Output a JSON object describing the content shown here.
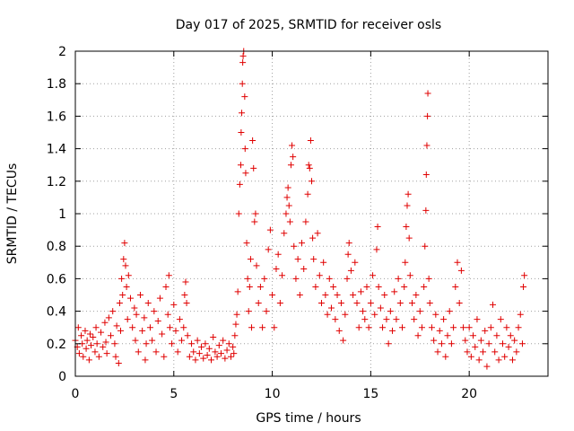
{
  "chart_data": {
    "type": "scatter",
    "title": "Day 017 of 2025, SRMTID for receiver osls",
    "xlabel": "GPS time / hours",
    "ylabel": "SRMTID / TECUs",
    "xlim": [
      0,
      24
    ],
    "ylim": [
      0,
      2
    ],
    "x_ticks": [
      0,
      5,
      10,
      15,
      20
    ],
    "x_tick_labels": [
      "0",
      "5",
      "10",
      "15",
      "20"
    ],
    "y_ticks": [
      0,
      0.2,
      0.4,
      0.6,
      0.8,
      1,
      1.2,
      1.4,
      1.6,
      1.8,
      2
    ],
    "y_tick_labels": [
      "0",
      "0.2",
      "0.4",
      "0.6",
      "0.8",
      "1",
      "1.2",
      "1.4",
      "1.6",
      "1.8",
      "2"
    ],
    "grid": true,
    "marker": "+",
    "color": "#e00000",
    "series": [
      {
        "name": "SRMTID",
        "points": [
          [
            0.0,
            0.22
          ],
          [
            0.1,
            0.18
          ],
          [
            0.15,
            0.3
          ],
          [
            0.2,
            0.14
          ],
          [
            0.3,
            0.25
          ],
          [
            0.35,
            0.2
          ],
          [
            0.4,
            0.12
          ],
          [
            0.5,
            0.28
          ],
          [
            0.55,
            0.17
          ],
          [
            0.6,
            0.22
          ],
          [
            0.7,
            0.1
          ],
          [
            0.75,
            0.26
          ],
          [
            0.8,
            0.19
          ],
          [
            0.9,
            0.24
          ],
          [
            1.0,
            0.15
          ],
          [
            1.05,
            0.3
          ],
          [
            1.1,
            0.2
          ],
          [
            1.2,
            0.12
          ],
          [
            1.3,
            0.27
          ],
          [
            1.4,
            0.18
          ],
          [
            1.5,
            0.33
          ],
          [
            1.55,
            0.21
          ],
          [
            1.6,
            0.14
          ],
          [
            1.7,
            0.36
          ],
          [
            1.8,
            0.25
          ],
          [
            1.9,
            0.4
          ],
          [
            2.0,
            0.2
          ],
          [
            2.05,
            0.12
          ],
          [
            2.1,
            0.31
          ],
          [
            2.2,
            0.08
          ],
          [
            2.25,
            0.45
          ],
          [
            2.3,
            0.28
          ],
          [
            2.35,
            0.6
          ],
          [
            2.4,
            0.5
          ],
          [
            2.45,
            0.72
          ],
          [
            2.5,
            0.82
          ],
          [
            2.55,
            0.68
          ],
          [
            2.6,
            0.55
          ],
          [
            2.65,
            0.35
          ],
          [
            2.7,
            0.62
          ],
          [
            2.8,
            0.48
          ],
          [
            2.9,
            0.3
          ],
          [
            3.0,
            0.42
          ],
          [
            3.05,
            0.22
          ],
          [
            3.1,
            0.38
          ],
          [
            3.2,
            0.15
          ],
          [
            3.3,
            0.5
          ],
          [
            3.4,
            0.28
          ],
          [
            3.5,
            0.36
          ],
          [
            3.55,
            0.1
          ],
          [
            3.6,
            0.2
          ],
          [
            3.7,
            0.45
          ],
          [
            3.8,
            0.3
          ],
          [
            3.9,
            0.22
          ],
          [
            4.0,
            0.4
          ],
          [
            4.1,
            0.15
          ],
          [
            4.2,
            0.34
          ],
          [
            4.3,
            0.48
          ],
          [
            4.4,
            0.26
          ],
          [
            4.5,
            0.12
          ],
          [
            4.6,
            0.55
          ],
          [
            4.7,
            0.38
          ],
          [
            4.75,
            0.62
          ],
          [
            4.8,
            0.3
          ],
          [
            4.9,
            0.2
          ],
          [
            5.0,
            0.44
          ],
          [
            5.1,
            0.28
          ],
          [
            5.2,
            0.15
          ],
          [
            5.3,
            0.35
          ],
          [
            5.4,
            0.22
          ],
          [
            5.5,
            0.3
          ],
          [
            5.55,
            0.5
          ],
          [
            5.6,
            0.58
          ],
          [
            5.65,
            0.45
          ],
          [
            5.7,
            0.25
          ],
          [
            5.8,
            0.12
          ],
          [
            5.9,
            0.2
          ],
          [
            6.0,
            0.15
          ],
          [
            6.1,
            0.1
          ],
          [
            6.2,
            0.22
          ],
          [
            6.3,
            0.14
          ],
          [
            6.4,
            0.18
          ],
          [
            6.5,
            0.11
          ],
          [
            6.6,
            0.2
          ],
          [
            6.7,
            0.13
          ],
          [
            6.8,
            0.17
          ],
          [
            6.9,
            0.1
          ],
          [
            7.0,
            0.24
          ],
          [
            7.1,
            0.15
          ],
          [
            7.2,
            0.12
          ],
          [
            7.3,
            0.19
          ],
          [
            7.4,
            0.14
          ],
          [
            7.5,
            0.22
          ],
          [
            7.6,
            0.11
          ],
          [
            7.7,
            0.16
          ],
          [
            7.8,
            0.2
          ],
          [
            7.9,
            0.12
          ],
          [
            8.0,
            0.18
          ],
          [
            8.05,
            0.14
          ],
          [
            8.1,
            0.25
          ],
          [
            8.15,
            0.32
          ],
          [
            8.2,
            0.38
          ],
          [
            8.25,
            0.52
          ],
          [
            8.3,
            1.0
          ],
          [
            8.35,
            1.18
          ],
          [
            8.4,
            1.3
          ],
          [
            8.42,
            1.5
          ],
          [
            8.45,
            1.62
          ],
          [
            8.48,
            1.8
          ],
          [
            8.5,
            1.93
          ],
          [
            8.52,
            1.97
          ],
          [
            8.55,
            2.0
          ],
          [
            8.6,
            1.72
          ],
          [
            8.62,
            1.4
          ],
          [
            8.65,
            1.25
          ],
          [
            8.7,
            0.82
          ],
          [
            8.75,
            0.6
          ],
          [
            8.8,
            0.4
          ],
          [
            8.85,
            0.55
          ],
          [
            8.9,
            0.72
          ],
          [
            8.95,
            0.3
          ],
          [
            9.0,
            1.45
          ],
          [
            9.05,
            1.28
          ],
          [
            9.1,
            0.95
          ],
          [
            9.15,
            1.0
          ],
          [
            9.2,
            0.68
          ],
          [
            9.3,
            0.45
          ],
          [
            9.4,
            0.55
          ],
          [
            9.5,
            0.3
          ],
          [
            9.6,
            0.6
          ],
          [
            9.7,
            0.4
          ],
          [
            9.8,
            0.78
          ],
          [
            9.9,
            0.9
          ],
          [
            10.0,
            0.5
          ],
          [
            10.1,
            0.3
          ],
          [
            10.2,
            0.66
          ],
          [
            10.3,
            0.75
          ],
          [
            10.4,
            0.45
          ],
          [
            10.5,
            0.62
          ],
          [
            10.6,
            0.88
          ],
          [
            10.7,
            1.0
          ],
          [
            10.75,
            1.1
          ],
          [
            10.8,
            1.16
          ],
          [
            10.85,
            1.05
          ],
          [
            10.9,
            0.95
          ],
          [
            10.95,
            1.3
          ],
          [
            11.0,
            1.42
          ],
          [
            11.05,
            1.35
          ],
          [
            11.1,
            0.8
          ],
          [
            11.2,
            0.6
          ],
          [
            11.3,
            0.72
          ],
          [
            11.4,
            0.5
          ],
          [
            11.5,
            0.82
          ],
          [
            11.6,
            0.66
          ],
          [
            11.7,
            0.95
          ],
          [
            11.8,
            1.12
          ],
          [
            11.85,
            1.3
          ],
          [
            11.9,
            1.28
          ],
          [
            11.95,
            1.45
          ],
          [
            12.0,
            1.2
          ],
          [
            12.05,
            0.85
          ],
          [
            12.1,
            0.72
          ],
          [
            12.2,
            0.55
          ],
          [
            12.3,
            0.88
          ],
          [
            12.4,
            0.62
          ],
          [
            12.5,
            0.45
          ],
          [
            12.6,
            0.7
          ],
          [
            12.7,
            0.5
          ],
          [
            12.8,
            0.38
          ],
          [
            12.9,
            0.6
          ],
          [
            13.0,
            0.42
          ],
          [
            13.1,
            0.55
          ],
          [
            13.2,
            0.35
          ],
          [
            13.3,
            0.5
          ],
          [
            13.4,
            0.28
          ],
          [
            13.5,
            0.45
          ],
          [
            13.6,
            0.22
          ],
          [
            13.7,
            0.38
          ],
          [
            13.8,
            0.6
          ],
          [
            13.85,
            0.75
          ],
          [
            13.9,
            0.82
          ],
          [
            14.0,
            0.65
          ],
          [
            14.1,
            0.5
          ],
          [
            14.2,
            0.7
          ],
          [
            14.3,
            0.45
          ],
          [
            14.4,
            0.3
          ],
          [
            14.5,
            0.52
          ],
          [
            14.6,
            0.4
          ],
          [
            14.7,
            0.35
          ],
          [
            14.8,
            0.55
          ],
          [
            14.9,
            0.3
          ],
          [
            15.0,
            0.45
          ],
          [
            15.1,
            0.62
          ],
          [
            15.2,
            0.38
          ],
          [
            15.3,
            0.78
          ],
          [
            15.35,
            0.92
          ],
          [
            15.4,
            0.55
          ],
          [
            15.5,
            0.42
          ],
          [
            15.6,
            0.3
          ],
          [
            15.7,
            0.5
          ],
          [
            15.8,
            0.35
          ],
          [
            15.9,
            0.2
          ],
          [
            16.0,
            0.4
          ],
          [
            16.1,
            0.28
          ],
          [
            16.2,
            0.52
          ],
          [
            16.3,
            0.35
          ],
          [
            16.4,
            0.6
          ],
          [
            16.5,
            0.45
          ],
          [
            16.6,
            0.3
          ],
          [
            16.7,
            0.55
          ],
          [
            16.75,
            0.7
          ],
          [
            16.8,
            0.92
          ],
          [
            16.85,
            1.05
          ],
          [
            16.9,
            1.12
          ],
          [
            16.95,
            0.85
          ],
          [
            17.0,
            0.62
          ],
          [
            17.1,
            0.45
          ],
          [
            17.2,
            0.35
          ],
          [
            17.3,
            0.5
          ],
          [
            17.4,
            0.25
          ],
          [
            17.5,
            0.4
          ],
          [
            17.6,
            0.3
          ],
          [
            17.7,
            0.55
          ],
          [
            17.75,
            0.8
          ],
          [
            17.8,
            1.02
          ],
          [
            17.82,
            1.24
          ],
          [
            17.85,
            1.42
          ],
          [
            17.88,
            1.6
          ],
          [
            17.9,
            1.74
          ],
          [
            17.95,
            0.6
          ],
          [
            18.0,
            0.45
          ],
          [
            18.1,
            0.3
          ],
          [
            18.2,
            0.22
          ],
          [
            18.3,
            0.38
          ],
          [
            18.4,
            0.15
          ],
          [
            18.5,
            0.28
          ],
          [
            18.6,
            0.2
          ],
          [
            18.7,
            0.35
          ],
          [
            18.8,
            0.12
          ],
          [
            18.9,
            0.25
          ],
          [
            19.0,
            0.4
          ],
          [
            19.1,
            0.2
          ],
          [
            19.2,
            0.3
          ],
          [
            19.3,
            0.55
          ],
          [
            19.4,
            0.7
          ],
          [
            19.5,
            0.45
          ],
          [
            19.6,
            0.65
          ],
          [
            19.7,
            0.3
          ],
          [
            19.8,
            0.22
          ],
          [
            19.9,
            0.15
          ],
          [
            20.0,
            0.3
          ],
          [
            20.1,
            0.12
          ],
          [
            20.2,
            0.25
          ],
          [
            20.3,
            0.18
          ],
          [
            20.4,
            0.35
          ],
          [
            20.5,
            0.1
          ],
          [
            20.6,
            0.22
          ],
          [
            20.7,
            0.15
          ],
          [
            20.8,
            0.28
          ],
          [
            20.9,
            0.06
          ],
          [
            21.0,
            0.2
          ],
          [
            21.1,
            0.3
          ],
          [
            21.2,
            0.44
          ],
          [
            21.3,
            0.15
          ],
          [
            21.4,
            0.25
          ],
          [
            21.5,
            0.1
          ],
          [
            21.6,
            0.35
          ],
          [
            21.7,
            0.2
          ],
          [
            21.8,
            0.12
          ],
          [
            21.9,
            0.3
          ],
          [
            22.0,
            0.18
          ],
          [
            22.1,
            0.25
          ],
          [
            22.2,
            0.1
          ],
          [
            22.3,
            0.22
          ],
          [
            22.4,
            0.15
          ],
          [
            22.5,
            0.3
          ],
          [
            22.6,
            0.38
          ],
          [
            22.7,
            0.2
          ],
          [
            22.75,
            0.55
          ],
          [
            22.8,
            0.62
          ]
        ]
      }
    ]
  }
}
